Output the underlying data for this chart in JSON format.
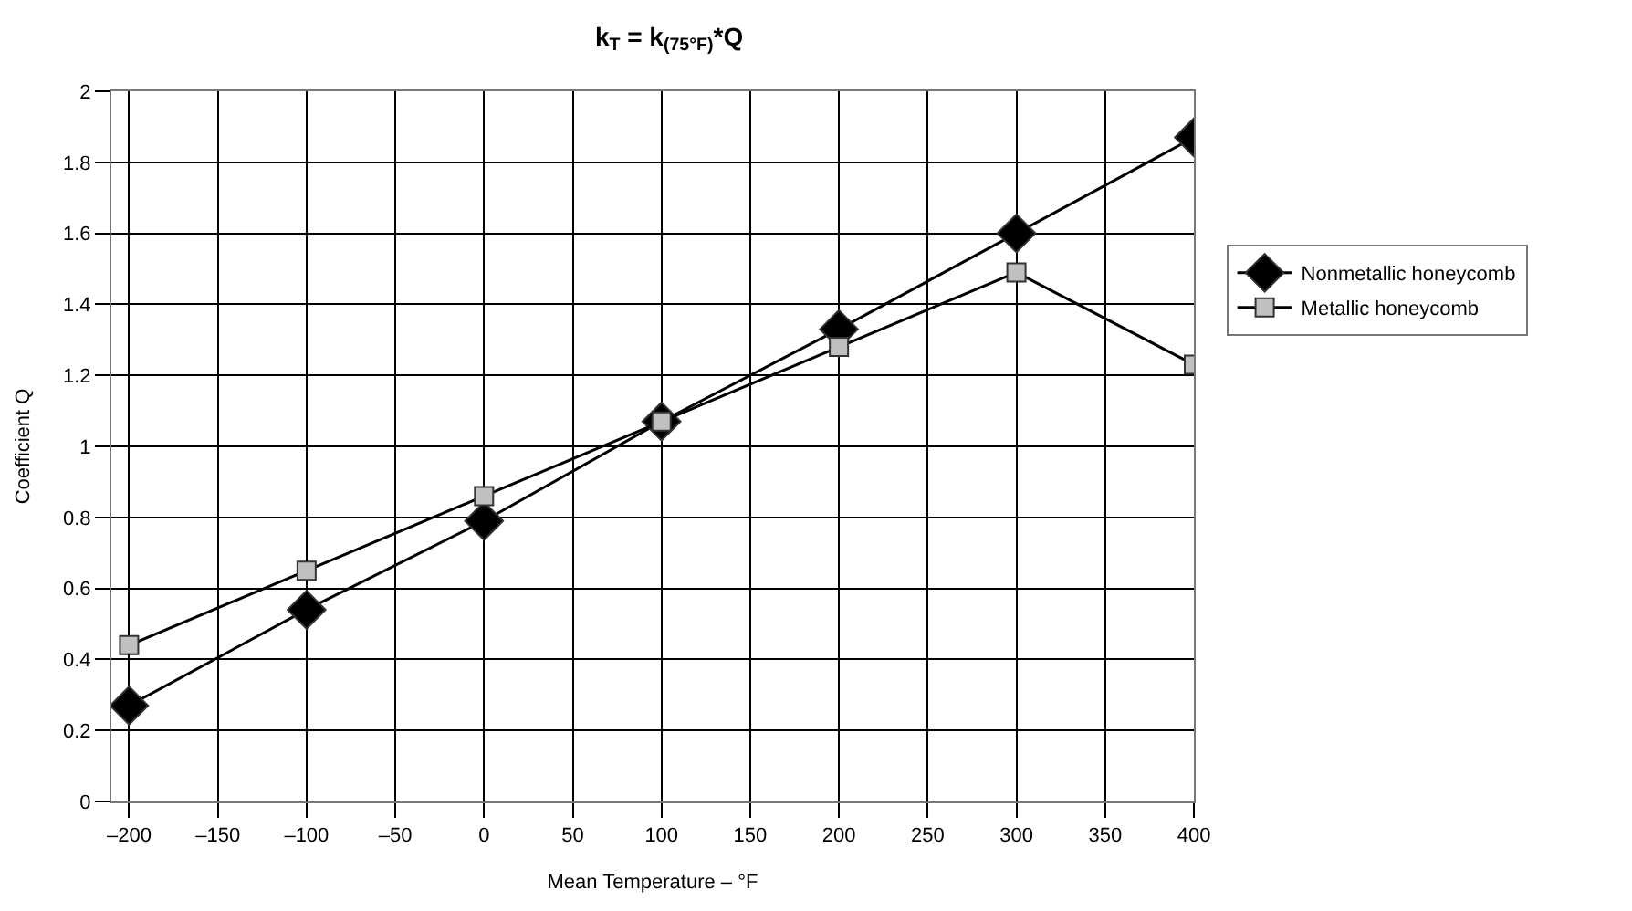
{
  "chart_data": {
    "type": "line",
    "title": "k$_{T}$ = k$_{(75°F)}$*Q",
    "xlabel": "Mean Temperature – °F",
    "ylabel": "Coefficient Q",
    "x": [
      -200,
      -100,
      0,
      100,
      200,
      300,
      400
    ],
    "series": [
      {
        "name": "Nonmetallic honeycomb",
        "color": "#000000",
        "marker": "diamond",
        "values": [
          0.27,
          0.54,
          0.79,
          1.07,
          1.33,
          1.6,
          1.87
        ]
      },
      {
        "name": "Metallic honeycomb",
        "color": "#c0c0c0",
        "marker": "square",
        "values": [
          0.44,
          0.65,
          0.86,
          1.07,
          1.28,
          1.49,
          1.23
        ]
      }
    ],
    "xlim": [
      -210,
      400
    ],
    "xticks": [
      {
        "value": -200,
        "label": "–200"
      },
      {
        "value": -150,
        "label": "–150"
      },
      {
        "value": -100,
        "label": "–100"
      },
      {
        "value": -50,
        "label": "–50"
      },
      0,
      50,
      100,
      150,
      200,
      250,
      300,
      350,
      400
    ],
    "ylim": [
      0,
      2
    ],
    "yticks": [
      0,
      0.2,
      0.4,
      0.6,
      0.8,
      1,
      1.2,
      1.4,
      1.6,
      1.8,
      2
    ],
    "grid": true,
    "legend": "right",
    "line_style": "solid"
  }
}
